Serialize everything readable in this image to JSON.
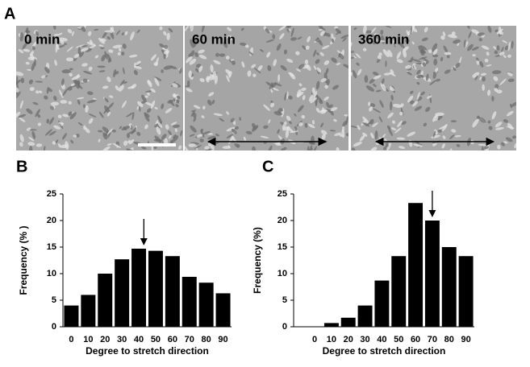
{
  "figure": {
    "panel_labels": [
      "A",
      "B",
      "C"
    ],
    "images": [
      {
        "label": "0 min"
      },
      {
        "label": "60 min"
      },
      {
        "label": "360 min"
      }
    ]
  },
  "chart_data": [
    {
      "type": "bar",
      "x": [
        0,
        10,
        20,
        30,
        40,
        50,
        60,
        70,
        80,
        90
      ],
      "values": [
        4,
        6,
        10,
        12.7,
        14.7,
        14.3,
        13.3,
        9.4,
        8.3,
        6.3
      ],
      "color": "#000000",
      "xlim": [
        -5,
        95
      ],
      "xticks": [
        0,
        10,
        20,
        30,
        40,
        50,
        60,
        70,
        80,
        90
      ],
      "ylim": [
        0,
        25
      ],
      "yticks": [
        0,
        5,
        10,
        15,
        20,
        25
      ],
      "xlabel": "Degree to stretch direction",
      "ylabel": "Frequency (% )",
      "arrow_x": 43
    },
    {
      "type": "bar",
      "x": [
        0,
        10,
        20,
        30,
        40,
        50,
        60,
        70,
        80,
        90
      ],
      "values": [
        0,
        0.7,
        1.7,
        4,
        8.7,
        13.3,
        23.3,
        20,
        15,
        13.3
      ],
      "color": "#000000",
      "xlim": [
        -12.5,
        95
      ],
      "xticks": [
        0,
        10,
        20,
        30,
        40,
        50,
        60,
        70,
        80,
        90
      ],
      "ylim": [
        0,
        25
      ],
      "yticks": [
        0,
        5,
        10,
        15,
        20,
        25
      ],
      "xlabel": "Degree to stretch direction",
      "ylabel": "Frequency (%)",
      "arrow_x": 70
    }
  ]
}
